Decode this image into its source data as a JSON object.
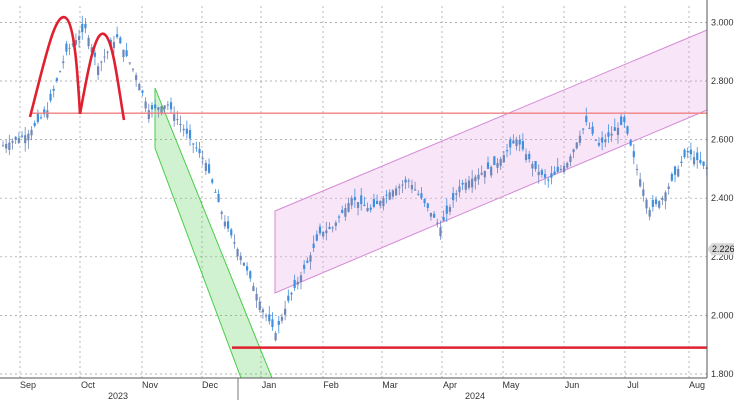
{
  "chart_data": {
    "type": "candlestick",
    "y_axis": {
      "ticks": [
        3.0,
        2.8,
        2.6,
        2.4,
        2.2,
        2.0,
        1.8
      ],
      "tick_labels": [
        "3.000",
        "2.800",
        "2.600",
        "2.400",
        "2.200",
        "2.000",
        "1.800"
      ],
      "ylim": [
        1.79,
        3.06
      ],
      "position": "right"
    },
    "x_axis": {
      "month_labels": [
        "Sep",
        "Oct",
        "Nov",
        "Dec",
        "Jan",
        "Feb",
        "Mar",
        "Apr",
        "May",
        "Jun",
        "Jul",
        "Aug"
      ],
      "year_labels": [
        {
          "label": "2023",
          "month": "Oct"
        },
        {
          "label": "2024",
          "month": "Apr"
        }
      ]
    },
    "grid": true,
    "last_value_label": "2.226",
    "colors": {
      "candle_up": "#6e86b8",
      "candle_down": "#3f8fe0",
      "overlay_red": "#e0202e",
      "channel_green": "#49cc49",
      "channel_pink": "#e6a2e6",
      "last_label_bg": "#d9d9d9"
    },
    "overlays": {
      "double_top_arcs": 2,
      "neckline_level": 2.69,
      "support_level": 1.89
    }
  }
}
